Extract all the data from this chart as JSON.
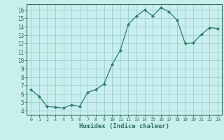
{
  "x": [
    0,
    1,
    2,
    3,
    4,
    5,
    6,
    7,
    8,
    9,
    10,
    11,
    12,
    13,
    14,
    15,
    16,
    17,
    18,
    19,
    20,
    21,
    22,
    23
  ],
  "y": [
    6.5,
    5.7,
    4.5,
    4.4,
    4.3,
    4.7,
    4.5,
    6.2,
    6.5,
    7.2,
    9.5,
    11.2,
    14.3,
    15.3,
    16.0,
    15.3,
    16.3,
    15.8,
    14.8,
    12.0,
    12.1,
    13.1,
    13.9,
    13.8
  ],
  "line_color": "#2e7d6e",
  "marker": "D",
  "marker_size": 2,
  "bg_color": "#c8eeee",
  "grid_color": "#9ecece",
  "xlabel": "Humidex (Indice chaleur)",
  "xlim": [
    -0.5,
    23.5
  ],
  "ylim": [
    3.5,
    16.7
  ],
  "yticks": [
    4,
    5,
    6,
    7,
    8,
    9,
    10,
    11,
    12,
    13,
    14,
    15,
    16
  ],
  "xticks": [
    0,
    1,
    2,
    3,
    4,
    5,
    6,
    7,
    8,
    9,
    10,
    11,
    12,
    13,
    14,
    15,
    16,
    17,
    18,
    19,
    20,
    21,
    22,
    23
  ],
  "tick_color": "#2e6e60",
  "axis_color": "#2e6e60"
}
